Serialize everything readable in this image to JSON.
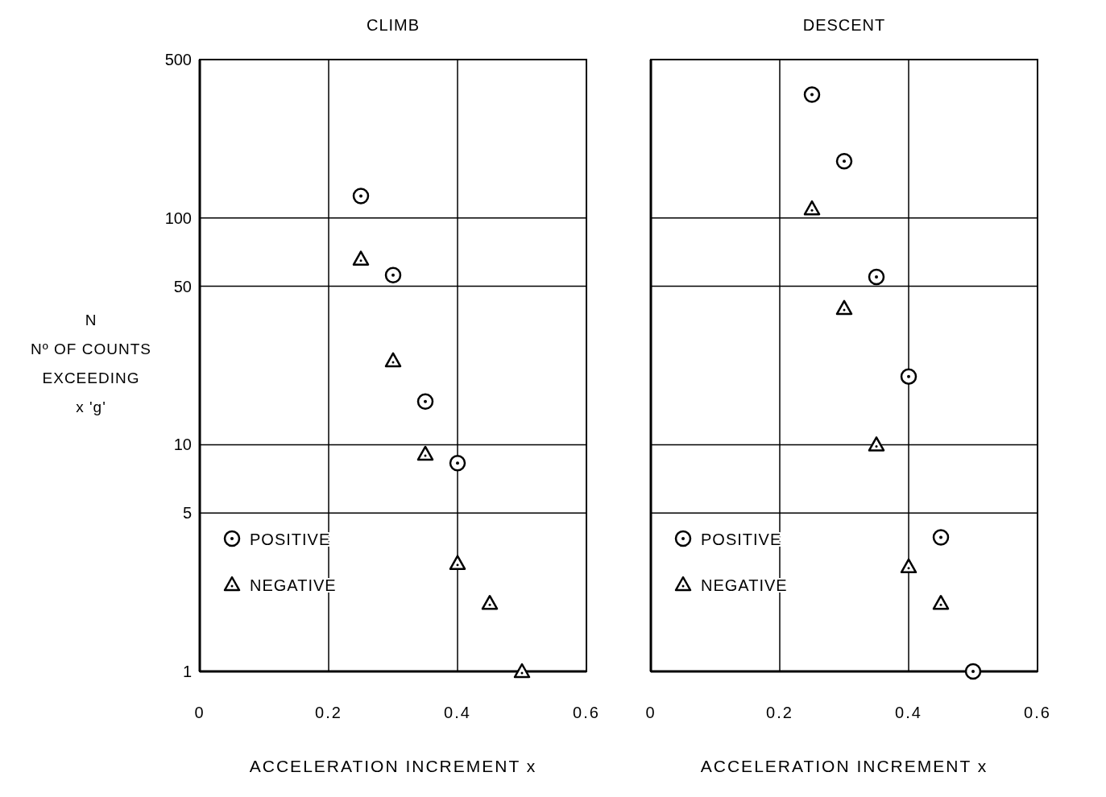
{
  "chart_data": [
    {
      "type": "scatter",
      "title": "CLIMB",
      "xlabel": "ACCELERATION  INCREMENT x",
      "ylabel": "N\nNº OF COUNTS\nEXCEEDING\nx 'g'",
      "xlim": [
        0,
        0.6
      ],
      "xticks": [
        0,
        0.2,
        0.4,
        0.6
      ],
      "ylim": [
        1,
        500
      ],
      "yticks": [
        1,
        5,
        10,
        50,
        100,
        500
      ],
      "log": "y",
      "grid": true,
      "legend": "bottom left",
      "series": [
        {
          "name": "POSITIVE",
          "color": "#000000",
          "marker": "circle",
          "x": [
            0.25,
            0.3,
            0.35,
            0.4
          ],
          "values": [
            125,
            56,
            15.5,
            8.3
          ]
        },
        {
          "name": "NEGATIVE",
          "color": "#000000",
          "marker": "triangle",
          "x": [
            0.25,
            0.3,
            0.35,
            0.4,
            0.45,
            0.5
          ],
          "values": [
            66,
            23.5,
            9.1,
            3,
            2,
            1
          ]
        }
      ]
    },
    {
      "type": "scatter",
      "title": "DESCENT",
      "xlabel": "ACCELERATION  INCREMENT x",
      "xlim": [
        0,
        0.6
      ],
      "xticks": [
        0,
        0.2,
        0.4,
        0.6
      ],
      "ylim": [
        1,
        500
      ],
      "yticks": [
        1,
        5,
        10,
        50,
        100,
        500
      ],
      "log": "y",
      "grid": true,
      "legend": "bottom left",
      "tick_labels": "x",
      "series": [
        {
          "name": "POSITIVE",
          "color": "#000000",
          "marker": "circle",
          "x": [
            0.25,
            0.3,
            0.35,
            0.4,
            0.45,
            0.5
          ],
          "values": [
            350,
            178,
            55,
            20,
            3.9,
            1
          ]
        },
        {
          "name": "NEGATIVE",
          "color": "#000000",
          "marker": "triangle",
          "x": [
            0.25,
            0.3,
            0.35,
            0.4,
            0.45
          ],
          "values": [
            110,
            40,
            10,
            2.9,
            2
          ]
        }
      ]
    }
  ]
}
